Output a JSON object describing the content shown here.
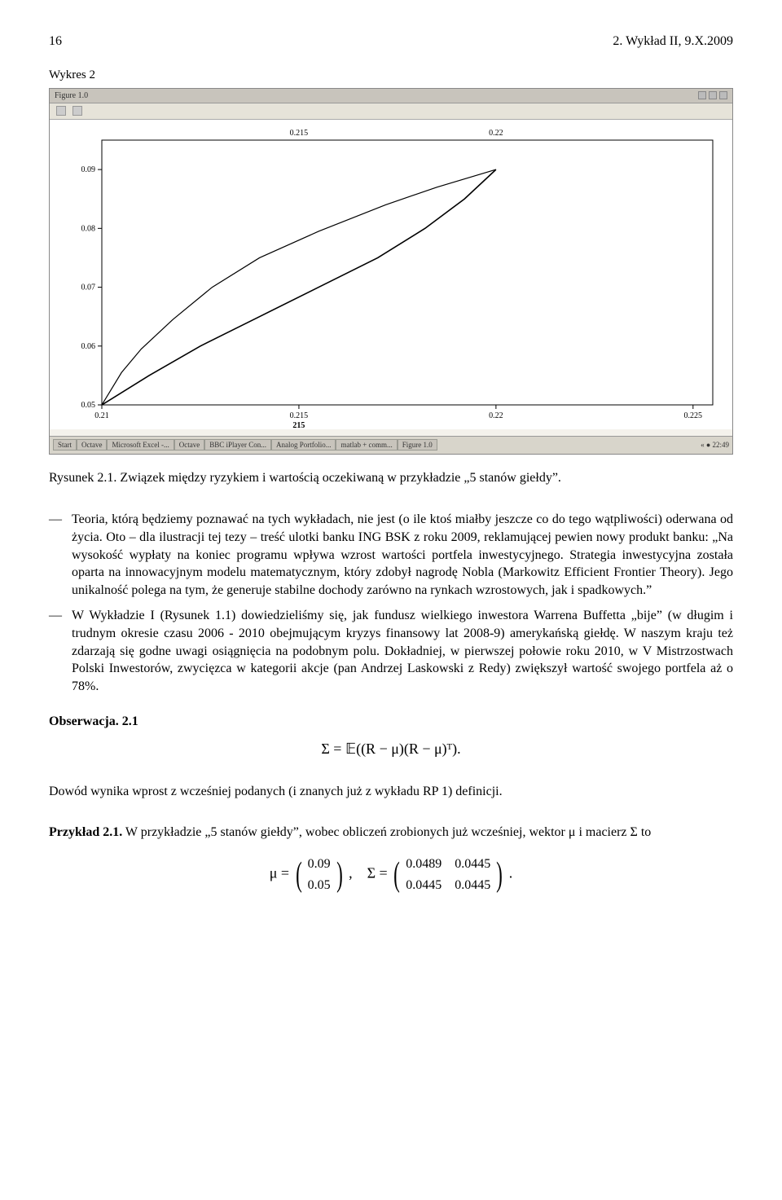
{
  "page": {
    "left_header": "16",
    "right_header": "2. Wykład II, 9.X.2009"
  },
  "figure": {
    "label": "Wykres 2",
    "window_title": "Figure 1.0",
    "toolbar_hint": " ",
    "chart": {
      "type": "line",
      "background_color": "#ffffff",
      "axis_color": "#000000",
      "ytick_positions": [
        0.05,
        0.06,
        0.07,
        0.08,
        0.09
      ],
      "ytick_labels": [
        "0.05",
        "0.06",
        "0.07",
        "0.08",
        "0.09"
      ],
      "xtick_positions": [
        0.21,
        0.215,
        0.22,
        0.225
      ],
      "xtick_labels": [
        "0.21",
        "0.215",
        "0.22",
        "0.225"
      ],
      "top_labels": [
        {
          "x": 0.215,
          "text": "0.215"
        },
        {
          "x": 0.22,
          "text": "0.22"
        }
      ],
      "extra_bottom_label": {
        "x": 0.215,
        "text": "215"
      },
      "xlim": [
        0.21,
        0.2255
      ],
      "ylim": [
        0.05,
        0.095
      ],
      "font_size": 10,
      "line_color": "#000000",
      "line_width_outer": 1.2,
      "line_width_inner": 1.6,
      "curves": {
        "outer": [
          [
            0.21,
            0.05
          ],
          [
            0.2105,
            0.0555
          ],
          [
            0.211,
            0.0595
          ],
          [
            0.2118,
            0.0645
          ],
          [
            0.2128,
            0.07
          ],
          [
            0.214,
            0.075
          ],
          [
            0.2155,
            0.0795
          ],
          [
            0.2172,
            0.084
          ],
          [
            0.2185,
            0.087
          ],
          [
            0.22,
            0.09
          ]
        ],
        "inner": [
          [
            0.21,
            0.05
          ],
          [
            0.2112,
            0.055
          ],
          [
            0.2125,
            0.06
          ],
          [
            0.214,
            0.065
          ],
          [
            0.2155,
            0.07
          ],
          [
            0.217,
            0.075
          ],
          [
            0.2182,
            0.08
          ],
          [
            0.2192,
            0.085
          ],
          [
            0.22,
            0.09
          ]
        ]
      }
    },
    "taskbar": {
      "items": [
        "Start",
        "Octave",
        "Microsoft Excel -...",
        "Octave",
        "BBC iPlayer Con...",
        "Analog Portfolio...",
        "matlab + comm...",
        "Figure 1.0"
      ],
      "right": "« ● 22:49"
    },
    "caption": "Rysunek 2.1. Związek między ryzykiem i wartością oczekiwaną w przykładzie „5 stanów giełdy”."
  },
  "body": {
    "dash1": "Teoria, którą będziemy poznawać na tych wykładach, nie jest (o ile ktoś miałby jeszcze co do tego wątpliwości) oderwana od życia. Oto – dla ilustracji tej tezy – treść ulotki banku ING BSK z roku 2009, reklamującej pewien nowy produkt banku: „Na wysokość wypłaty na koniec programu wpływa wzrost wartości portfela inwestycyjnego. Strategia inwestycyjna została oparta na innowacyjnym modelu matematycznym, który zdobył nagrodę Nobla (Markowitz Efficient Frontier Theory). Jego unikalność polega na tym, że generuje stabilne dochody zarówno na rynkach wzrostowych, jak i spadkowych.”",
    "dash2": "W Wykładzie I (Rysunek 1.1) dowiedzieliśmy się, jak fundusz wielkiego inwestora Warrena Buffetta „bije” (w długim i trudnym okresie czasu 2006 - 2010 obejmującym kryzys finansowy lat 2008-9) amerykańską giełdę. W naszym kraju też zdarzają się godne uwagi osiągnięcia na podobnym polu. Dokładniej, w pierwszej połowie roku 2010, w V Mistrzostwach Polski Inwestorów, zwycięzca w kategorii akcje (pan Andrzej Laskowski z Redy) zwiększył wartość swojego portfela aż o 78%.",
    "obs_label": "Obserwacja. 2.1",
    "obs_formula": "Σ = 𝔼((R − μ)(R − μ)ᵀ).",
    "proof_line": "Dowód wynika wprost z wcześniej podanych (i znanych już z wykładu RP 1) definicji.",
    "example_label": "Przykład 2.1.",
    "example_text": " W przykładzie „5 stanów giełdy”, wobec obliczeń zrobionych już wcześniej, wektor μ i macierz Σ to",
    "mu_vec": [
      "0.09",
      "0.05"
    ],
    "sigma_mat": [
      [
        "0.0489",
        "0.0445"
      ],
      [
        "0.0445",
        "0.0445"
      ]
    ],
    "mu_prefix": "μ = ",
    "between": ", Σ = ",
    "trailing": "."
  }
}
